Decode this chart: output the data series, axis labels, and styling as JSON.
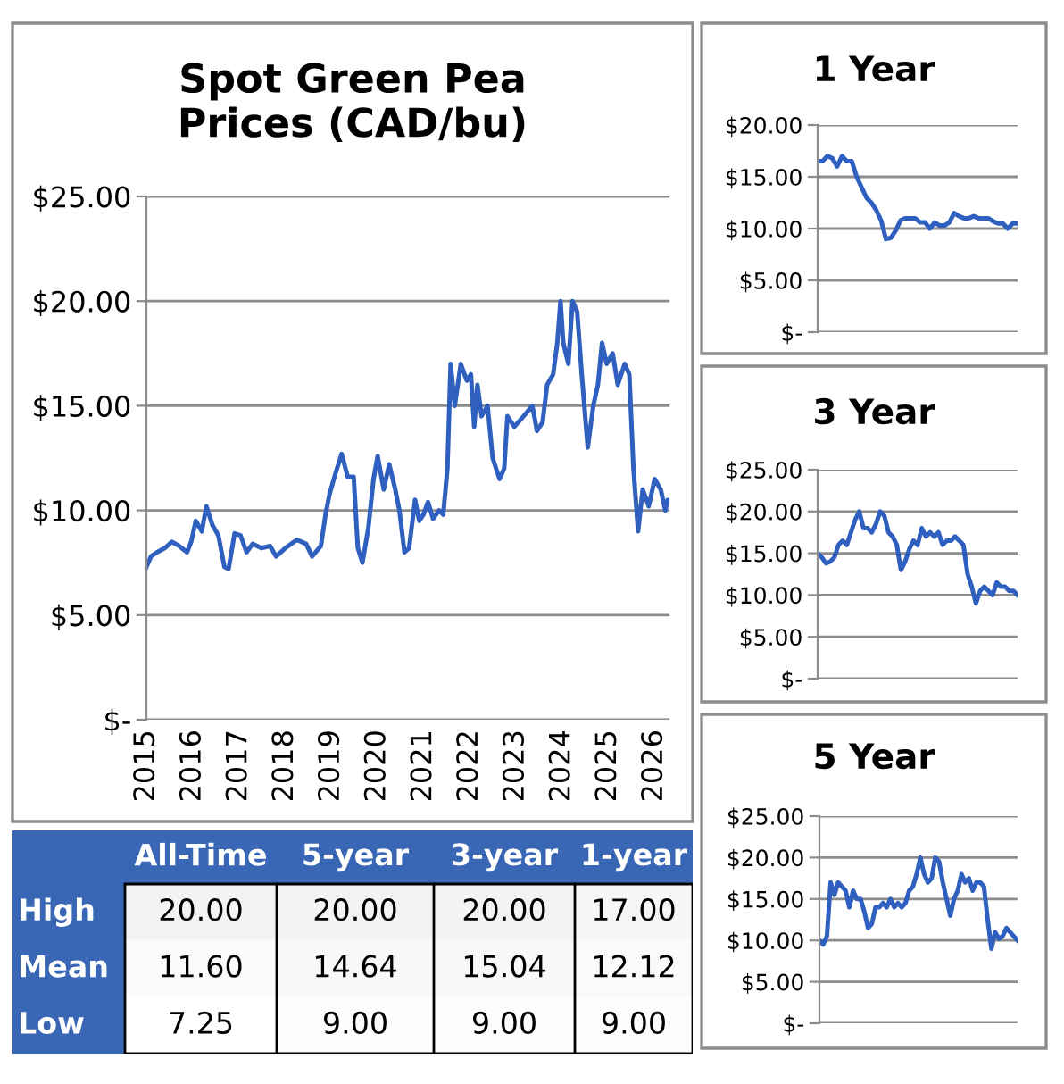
{
  "chart_data": [
    {
      "type": "line",
      "title": "Spot Green Pea Prices (CAD/bu)",
      "xlim": [
        2015,
        2026.33
      ],
      "xticks": [
        2015,
        2016,
        2017,
        2018,
        2019,
        2020,
        2021,
        2022,
        2023,
        2024,
        2025,
        2026
      ],
      "ylim": [
        0,
        25
      ],
      "yticks": [
        {
          "value": 0,
          "label": "$-"
        },
        {
          "value": 5,
          "label": "$5.00"
        },
        {
          "value": 10,
          "label": "$10.00"
        },
        {
          "value": 15,
          "label": "$15.00"
        },
        {
          "value": 20,
          "label": "$20.00"
        },
        {
          "value": 25,
          "label": "$25.00"
        }
      ],
      "grid": "y",
      "series": [
        {
          "color": "#2f5fbf",
          "x": [
            2015.0,
            2015.1,
            2015.23,
            2015.4,
            2015.55,
            2015.71,
            2015.88,
            2015.97,
            2016.07,
            2016.2,
            2016.3,
            2016.43,
            2016.56,
            2016.69,
            2016.78,
            2016.91,
            2017.04,
            2017.17,
            2017.3,
            2017.49,
            2017.68,
            2017.81,
            2018.01,
            2018.26,
            2018.46,
            2018.59,
            2018.78,
            2018.88,
            2018.97,
            2019.1,
            2019.23,
            2019.36,
            2019.49,
            2019.58,
            2019.68,
            2019.81,
            2019.92,
            2020.01,
            2020.14,
            2020.26,
            2020.39,
            2020.48,
            2020.59,
            2020.69,
            2020.82,
            2020.91,
            2021.0,
            2021.1,
            2021.21,
            2021.34,
            2021.43,
            2021.52,
            2021.59,
            2021.68,
            2021.81,
            2021.94,
            2022.03,
            2022.1,
            2022.17,
            2022.26,
            2022.39,
            2022.5,
            2022.65,
            2022.75,
            2022.82,
            2022.97,
            2023.17,
            2023.36,
            2023.46,
            2023.58,
            2023.68,
            2023.81,
            2023.9,
            2023.97,
            2024.03,
            2024.14,
            2024.23,
            2024.33,
            2024.43,
            2024.56,
            2024.68,
            2024.78,
            2024.87,
            2024.97,
            2025.1,
            2025.21,
            2025.36,
            2025.46,
            2025.55,
            2025.65,
            2025.75,
            2025.88,
            2026.01,
            2026.14,
            2026.24,
            2026.29,
            2026.33
          ],
          "values": [
            7.3,
            7.8,
            8.0,
            8.2,
            8.5,
            8.3,
            8.0,
            8.5,
            9.5,
            9.0,
            10.2,
            9.3,
            8.8,
            7.3,
            7.2,
            8.9,
            8.8,
            8.0,
            8.4,
            8.2,
            8.3,
            7.8,
            8.2,
            8.6,
            8.4,
            7.8,
            8.3,
            9.8,
            10.8,
            11.8,
            12.7,
            11.6,
            11.6,
            8.2,
            7.5,
            9.2,
            11.5,
            12.6,
            11.0,
            12.2,
            11.0,
            10.0,
            8.0,
            8.2,
            10.5,
            9.5,
            9.8,
            10.4,
            9.6,
            10.0,
            9.8,
            12.0,
            17.0,
            15.0,
            17.0,
            16.2,
            16.5,
            14.0,
            16.0,
            14.5,
            15.0,
            12.5,
            11.5,
            12.0,
            14.5,
            14.0,
            14.5,
            15.0,
            13.8,
            14.2,
            16.0,
            16.5,
            18.0,
            20.0,
            18.0,
            17.0,
            20.0,
            19.5,
            16.5,
            13.0,
            15.0,
            16.0,
            18.0,
            17.0,
            17.5,
            16.0,
            17.0,
            16.5,
            12.0,
            9.0,
            11.0,
            10.2,
            11.5,
            11.0,
            10.0,
            10.5,
            10.5
          ]
        }
      ]
    },
    {
      "type": "line",
      "title": "1 Year",
      "categories": [
        null,
        null,
        null,
        null,
        null,
        null,
        null,
        null,
        null,
        null,
        null,
        null,
        null,
        null,
        null,
        null,
        null,
        null,
        null,
        null,
        null,
        null,
        null,
        null,
        null,
        null,
        null,
        null,
        null,
        null,
        null,
        null,
        null,
        null,
        null,
        null,
        null,
        null,
        null,
        null,
        null,
        null
      ],
      "ylim": [
        0,
        20
      ],
      "yticks": [
        {
          "value": 0,
          "label": "$-"
        },
        {
          "value": 5,
          "label": "$5.00"
        },
        {
          "value": 10,
          "label": "$10.00"
        },
        {
          "value": 15,
          "label": "$15.00"
        },
        {
          "value": 20,
          "label": "$20.00"
        }
      ],
      "grid": "y",
      "tick_labels": "y",
      "series": [
        {
          "color": "#2f5fbf",
          "values": [
            16.5,
            16.5,
            17.0,
            16.8,
            16.0,
            17.0,
            16.5,
            16.5,
            15.0,
            14.0,
            13.0,
            12.5,
            11.8,
            10.8,
            9.0,
            9.1,
            9.8,
            10.8,
            11.0,
            11.0,
            11.0,
            10.6,
            10.6,
            10.0,
            10.6,
            10.3,
            10.3,
            10.6,
            11.5,
            11.2,
            11.0,
            11.0,
            11.2,
            11.0,
            11.0,
            11.0,
            10.7,
            10.5,
            10.5,
            10.0,
            10.5,
            10.5
          ]
        }
      ]
    },
    {
      "type": "line",
      "title": "3 Year",
      "categories": [
        null,
        null,
        null,
        null,
        null,
        null,
        null,
        null,
        null,
        null,
        null,
        null,
        null,
        null,
        null,
        null,
        null,
        null,
        null,
        null,
        null,
        null,
        null,
        null,
        null,
        null,
        null,
        null,
        null,
        null,
        null,
        null,
        null,
        null,
        null,
        null,
        null,
        null,
        null,
        null,
        null,
        null,
        null,
        null,
        null,
        null,
        null,
        null,
        null
      ],
      "ylim": [
        0,
        25
      ],
      "yticks": [
        {
          "value": 0,
          "label": "$-"
        },
        {
          "value": 5,
          "label": "$5.00"
        },
        {
          "value": 10,
          "label": "$10.00"
        },
        {
          "value": 15,
          "label": "$15.00"
        },
        {
          "value": 20,
          "label": "$20.00"
        },
        {
          "value": 25,
          "label": "$25.00"
        }
      ],
      "grid": "y",
      "tick_labels": "y",
      "series": [
        {
          "color": "#2f5fbf",
          "values": [
            15.0,
            14.5,
            13.8,
            14.0,
            14.5,
            16.0,
            16.5,
            16.0,
            17.5,
            19.0,
            20.0,
            18.0,
            18.0,
            17.5,
            18.5,
            20.0,
            19.5,
            17.5,
            17.0,
            16.0,
            13.0,
            14.0,
            15.5,
            16.5,
            16.0,
            18.0,
            17.0,
            17.5,
            17.0,
            17.5,
            16.0,
            16.5,
            16.5,
            17.0,
            16.5,
            16.0,
            12.5,
            11.0,
            9.0,
            10.5,
            11.0,
            10.5,
            10.0,
            11.5,
            11.0,
            11.0,
            10.5,
            10.5,
            10.0
          ]
        }
      ]
    },
    {
      "type": "line",
      "title": "5 Year",
      "categories": [
        null,
        null,
        null,
        null,
        null,
        null,
        null,
        null,
        null,
        null,
        null,
        null,
        null,
        null,
        null,
        null,
        null,
        null,
        null,
        null,
        null,
        null,
        null,
        null,
        null,
        null,
        null,
        null,
        null,
        null,
        null,
        null,
        null,
        null,
        null,
        null,
        null,
        null,
        null,
        null,
        null,
        null,
        null,
        null,
        null,
        null,
        null,
        null,
        null,
        null,
        null,
        null,
        null,
        null
      ],
      "ylim": [
        0,
        25
      ],
      "yticks": [
        {
          "value": 0,
          "label": "$-"
        },
        {
          "value": 5,
          "label": "$5.00"
        },
        {
          "value": 10,
          "label": "$10.00"
        },
        {
          "value": 15,
          "label": "$15.00"
        },
        {
          "value": 20,
          "label": "$20.00"
        },
        {
          "value": 25,
          "label": "$25.00"
        }
      ],
      "grid": "y",
      "tick_labels": "y",
      "series": [
        {
          "color": "#2f5fbf",
          "values": [
            10.0,
            9.5,
            10.5,
            17.0,
            15.5,
            17.0,
            16.5,
            16.0,
            14.0,
            16.0,
            15.0,
            15.0,
            13.5,
            11.5,
            12.0,
            14.0,
            14.0,
            14.5,
            14.0,
            15.0,
            14.0,
            14.5,
            14.0,
            14.5,
            16.0,
            16.5,
            18.0,
            20.0,
            18.0,
            17.0,
            17.5,
            20.0,
            19.5,
            17.0,
            15.0,
            13.0,
            15.0,
            16.0,
            18.0,
            17.0,
            17.5,
            16.0,
            17.0,
            17.0,
            16.5,
            12.5,
            9.0,
            11.0,
            10.2,
            10.5,
            11.5,
            11.0,
            10.5,
            10.0
          ]
        }
      ]
    },
    {
      "type": "heatmap",
      "data_labels": true,
      "categories": [
        "All-Time",
        "5-year",
        "3-year",
        "1-year"
      ],
      "y_categories": [
        "High",
        "Mean",
        "Low"
      ],
      "cells": [
        [
          20.0,
          20.0,
          20.0,
          17.0
        ],
        [
          11.6,
          14.64,
          15.04,
          12.12
        ],
        [
          7.25,
          9.0,
          9.0,
          9.0
        ]
      ],
      "cell_labels": [
        [
          "20.00",
          "20.00",
          "20.00",
          "17.00"
        ],
        [
          "11.60",
          "14.64",
          "15.04",
          "12.12"
        ],
        [
          "7.25",
          "9.00",
          "9.00",
          "9.00"
        ]
      ]
    }
  ]
}
